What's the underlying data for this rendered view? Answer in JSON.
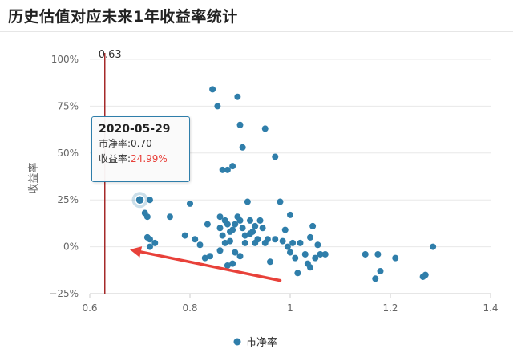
{
  "page": {
    "title": "历史估值对应未来1年收益率统计"
  },
  "chart_data": {
    "type": "scatter",
    "xlabel": "",
    "ylabel": "收益率",
    "xlim": [
      0.6,
      1.4
    ],
    "ylim": [
      -25,
      100
    ],
    "x_ticks": [
      "0.6",
      "0.8",
      "1",
      "1.2",
      "1.4"
    ],
    "y_ticks": [
      "100%",
      "75%",
      "50%",
      "25%",
      "0%",
      "−25%"
    ],
    "grid": "horizontal",
    "legend": {
      "position": "bottom",
      "entries": [
        "市净率"
      ]
    },
    "series_color": "#2f7eaa",
    "reference_line": {
      "x": 0.63,
      "label": "0.63",
      "color": "#a52a2a"
    },
    "tooltip": {
      "date": "2020-05-29",
      "pb_label": "市净率:",
      "pb_value": "0.70",
      "ret_label": "收益率:",
      "ret_value": "24.99%"
    },
    "highlight_point": {
      "x": 0.7,
      "y": 24.99
    },
    "annotation_arrow": {
      "from": [
        0.98,
        -18
      ],
      "to": [
        0.68,
        -1.5
      ],
      "color": "#e8413a"
    },
    "series": [
      {
        "name": "市净率",
        "points": [
          [
            0.7,
            24.99
          ],
          [
            0.71,
            18
          ],
          [
            0.715,
            16
          ],
          [
            0.72,
            25
          ],
          [
            0.715,
            5
          ],
          [
            0.72,
            4
          ],
          [
            0.73,
            2
          ],
          [
            0.72,
            0
          ],
          [
            0.76,
            16
          ],
          [
            0.79,
            6
          ],
          [
            0.8,
            23
          ],
          [
            0.81,
            4
          ],
          [
            0.82,
            1
          ],
          [
            0.83,
            -6
          ],
          [
            0.835,
            12
          ],
          [
            0.84,
            -5
          ],
          [
            0.845,
            84
          ],
          [
            0.855,
            75
          ],
          [
            0.865,
            41
          ],
          [
            0.875,
            41
          ],
          [
            0.885,
            43
          ],
          [
            0.895,
            80
          ],
          [
            0.9,
            65
          ],
          [
            0.905,
            53
          ],
          [
            0.95,
            63
          ],
          [
            0.97,
            48
          ],
          [
            0.98,
            24
          ],
          [
            0.86,
            16
          ],
          [
            0.87,
            14
          ],
          [
            0.86,
            10
          ],
          [
            0.875,
            12
          ],
          [
            0.88,
            8
          ],
          [
            0.865,
            6
          ],
          [
            0.87,
            2
          ],
          [
            0.88,
            3
          ],
          [
            0.885,
            9
          ],
          [
            0.89,
            12
          ],
          [
            0.895,
            16
          ],
          [
            0.9,
            14
          ],
          [
            0.905,
            10
          ],
          [
            0.91,
            6
          ],
          [
            0.915,
            24
          ],
          [
            0.92,
            14
          ],
          [
            0.925,
            8
          ],
          [
            0.93,
            11
          ],
          [
            0.935,
            4
          ],
          [
            0.94,
            14
          ],
          [
            0.945,
            10
          ],
          [
            0.95,
            2
          ],
          [
            0.955,
            4
          ],
          [
            0.96,
            -8
          ],
          [
            0.97,
            4
          ],
          [
            0.86,
            -2
          ],
          [
            0.875,
            -10
          ],
          [
            0.885,
            -9
          ],
          [
            0.89,
            -3
          ],
          [
            0.9,
            -5
          ],
          [
            0.91,
            2
          ],
          [
            0.92,
            7
          ],
          [
            0.93,
            2
          ],
          [
            0.985,
            3
          ],
          [
            0.99,
            9
          ],
          [
            0.995,
            0
          ],
          [
            1.0,
            17
          ],
          [
            1.0,
            -3
          ],
          [
            1.005,
            2
          ],
          [
            1.01,
            -6
          ],
          [
            1.015,
            -14
          ],
          [
            1.02,
            2
          ],
          [
            1.03,
            -4
          ],
          [
            1.035,
            -9
          ],
          [
            1.04,
            -11
          ],
          [
            1.04,
            5
          ],
          [
            1.045,
            11
          ],
          [
            1.05,
            -6
          ],
          [
            1.055,
            1
          ],
          [
            1.06,
            -4
          ],
          [
            1.07,
            -4
          ],
          [
            1.15,
            -4
          ],
          [
            1.17,
            -17
          ],
          [
            1.18,
            -13
          ],
          [
            1.175,
            -4
          ],
          [
            1.21,
            -6
          ],
          [
            1.265,
            -16
          ],
          [
            1.27,
            -15
          ],
          [
            1.285,
            0
          ]
        ]
      }
    ]
  }
}
